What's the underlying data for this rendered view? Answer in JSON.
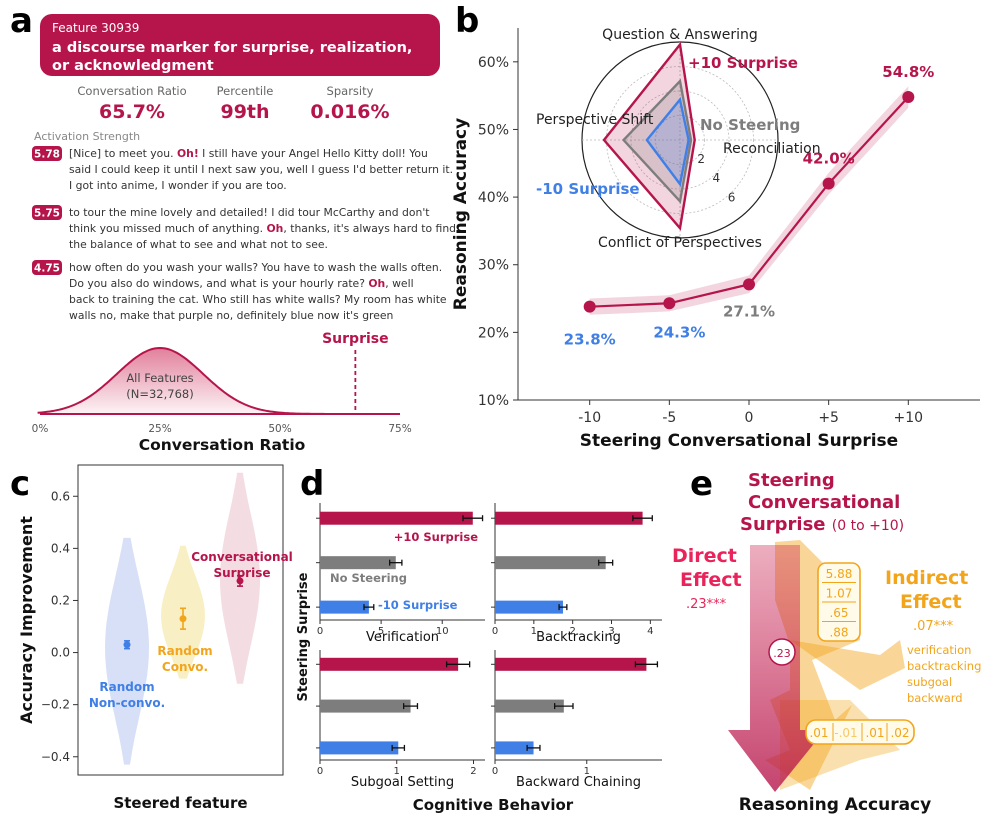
{
  "colors": {
    "red": "#b5154b",
    "gray": "#7d7d7d",
    "blue": "#3f7fe6",
    "gold": "#f2a51b",
    "pink": "#d98aa2",
    "lightblue": "#8aa9e8",
    "yellowfill": "#f7e9b0"
  },
  "panel_a": {
    "letter": "a",
    "feature_id": "Feature 30939",
    "feature_desc_line1": "a discourse marker for surprise, realization,",
    "feature_desc_line2": "or acknowledgment",
    "stats": [
      {
        "label": "Conversation Ratio",
        "value": "65.7%"
      },
      {
        "label": "Percentile",
        "value": "99th"
      },
      {
        "label": "Sparsity",
        "value": "0.016%"
      }
    ],
    "activation_header": "Activation Strength",
    "examples": [
      {
        "strength": "5.78",
        "lines": [
          [
            "[Nice] to meet you. ",
            "Oh!",
            " I still have your Angel Hello Kitty doll! You"
          ],
          [
            "said I could keep it until I next saw you, well I guess I'd better return it."
          ],
          [
            "I got into anime, I wonder if you are too."
          ]
        ]
      },
      {
        "strength": "5.75",
        "lines": [
          [
            "to tour the mine    lovely and detailed! I did tour McCarthy and don't"
          ],
          [
            "think you missed much of anything. ",
            "Oh",
            ", thanks, it's always hard to find"
          ],
          [
            "the balance of what to see and what not to see."
          ]
        ]
      },
      {
        "strength": "4.75",
        "lines": [
          [
            "how often do you wash your walls? You have to wash the walls often."
          ],
          [
            "Do you also do windows, and what is your hourly rate? ",
            "Oh",
            ", well"
          ],
          [
            "back to training the cat. Who still has white walls? My room has white"
          ],
          [
            "walls     no, make that purple     no, definitely blue     now it's green"
          ]
        ]
      }
    ],
    "distribution": {
      "label_line1": "All Features",
      "label_line2": "(N=32,768)",
      "marker_label": "Surprise",
      "marker_value": 65.7,
      "mean": 25,
      "sd": 9,
      "xlim": [
        0,
        75
      ],
      "ticks": [
        "0%",
        "25%",
        "50%",
        "75%"
      ],
      "xlabel": "Conversation Ratio"
    }
  },
  "chart_data": [
    {
      "panel": "b",
      "type": "line",
      "x": [
        -10,
        -5,
        0,
        5,
        10
      ],
      "x_tick_labels": [
        "-10",
        "-5",
        "0",
        "+5",
        "+10"
      ],
      "y": [
        23.8,
        24.3,
        27.1,
        42.0,
        54.8
      ],
      "y_labels": [
        "23.8%",
        "24.3%",
        "27.1%",
        "42.0%",
        "54.8%"
      ],
      "ci": [
        [
          22.6,
          25.0
        ],
        [
          23.1,
          25.5
        ],
        [
          25.8,
          28.4
        ],
        [
          40.4,
          43.6
        ],
        [
          53.2,
          56.4
        ]
      ],
      "ylim": [
        10,
        65
      ],
      "xlim": [
        -14.5,
        14.5
      ],
      "y_ticks": [
        10,
        20,
        30,
        40,
        50,
        60
      ],
      "y_tick_labels": [
        "10%",
        "20%",
        "30%",
        "40%",
        "50%",
        "60%"
      ],
      "xlabel": "Steering Conversational Surprise",
      "ylabel": "Reasoning Accuracy",
      "inset_radar": {
        "type": "radar",
        "axes": [
          "Question & Answering",
          "Reconciliation",
          "Conflict of Perspectives",
          "Perspective Shift"
        ],
        "rmax": 8,
        "rings": [
          2,
          4,
          6
        ],
        "ring_labels": [
          "2",
          "4",
          "6"
        ],
        "series": [
          {
            "name": "+10 Surprise",
            "values": [
              7.8,
              1.2,
              7.2,
              6.2
            ]
          },
          {
            "name": "No Steering",
            "values": [
              4.8,
              0.9,
              5.0,
              4.6
            ]
          },
          {
            "name": "-10 Surprise",
            "values": [
              3.3,
              0.7,
              3.6,
              2.7
            ]
          }
        ]
      }
    },
    {
      "panel": "c",
      "type": "violin",
      "categories": [
        "Random Non-convo.",
        "Random Convo.",
        "Conversational Surprise"
      ],
      "category_lines": [
        [
          "Random",
          "Non-convo."
        ],
        [
          "Random",
          "Convo."
        ],
        [
          "Conversational",
          "Surprise"
        ]
      ],
      "means": [
        0.03,
        0.13,
        0.275
      ],
      "errors": [
        0.015,
        0.04,
        0.02
      ],
      "ranges": [
        [
          -0.43,
          0.44
        ],
        [
          -0.1,
          0.41
        ],
        [
          -0.12,
          0.69
        ]
      ],
      "ylim": [
        -0.47,
        0.72
      ],
      "y_ticks": [
        -0.4,
        -0.2,
        0.0,
        0.2,
        0.4,
        0.6
      ],
      "y_tick_labels": [
        "−0.4",
        "−0.2",
        "0.0",
        "0.2",
        "0.4",
        "0.6"
      ],
      "xlabel": "Steered feature",
      "ylabel": "Accuracy Improvement"
    },
    {
      "panel": "d",
      "type": "bar",
      "orientation": "horizontal",
      "xlabel": "Cognitive Behavior",
      "ylabel": "Steering Surprise",
      "series_names": [
        "+10 Surprise",
        "No Steering",
        "-10 Surprise"
      ],
      "subplots": [
        {
          "title": "Verification",
          "values": [
            12.5,
            6.2,
            4.0
          ],
          "errors": [
            0.8,
            0.5,
            0.4
          ],
          "xlim": [
            0,
            13.5
          ],
          "ticks": [
            0,
            5,
            10
          ],
          "tick_labels": [
            "0",
            "5",
            "10"
          ]
        },
        {
          "title": "Backtracking",
          "values": [
            3.8,
            2.85,
            1.75
          ],
          "errors": [
            0.25,
            0.18,
            0.1
          ],
          "xlim": [
            0,
            4.3
          ],
          "ticks": [
            0,
            1,
            2,
            3,
            4
          ],
          "tick_labels": [
            "0",
            "1",
            "2",
            "3",
            "4"
          ]
        },
        {
          "title": "Subgoal Setting",
          "values": [
            1.8,
            1.18,
            1.02
          ],
          "errors": [
            0.15,
            0.09,
            0.08
          ],
          "xlim": [
            0,
            2.15
          ],
          "ticks": [
            0,
            1,
            2
          ],
          "tick_labels": [
            "0",
            "1",
            "2"
          ]
        },
        {
          "title": "Backward Chaining",
          "values": [
            1.65,
            0.75,
            0.42
          ],
          "errors": [
            0.12,
            0.1,
            0.07
          ],
          "xlim": [
            0,
            1.82
          ],
          "ticks": [
            0,
            1
          ],
          "tick_labels": [
            "0",
            "1"
          ]
        }
      ]
    }
  ],
  "panel_e": {
    "letter": "e",
    "title_lines": [
      "Steering",
      "Conversational"
    ],
    "title_last": "Surprise",
    "title_range": "(0 to +10)",
    "direct_line1": "Direct",
    "direct_line2": "Effect",
    "direct_value": ".23***",
    "direct_path": ".23",
    "indirect_line1": "Indirect",
    "indirect_line2": "Effect",
    "indirect_value": ".07***",
    "a_paths": [
      "5.88",
      "1.07",
      ".65",
      ".88"
    ],
    "b_paths": [
      ".01",
      "-.01",
      ".01",
      ".02"
    ],
    "mediators": [
      "verification",
      "backtracking",
      "subgoal",
      "backward"
    ],
    "outcome": "Reasoning Accuracy"
  }
}
